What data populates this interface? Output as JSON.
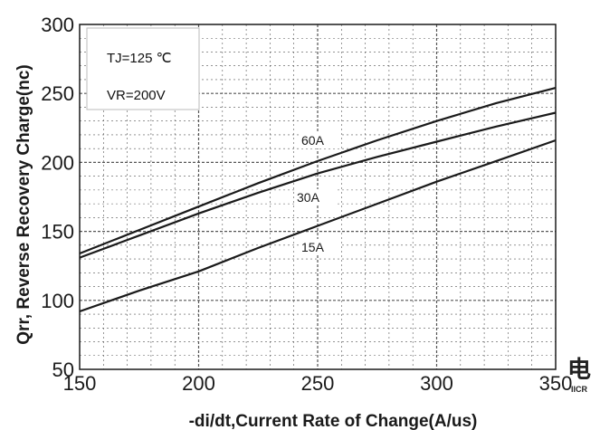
{
  "chart_data": {
    "type": "line",
    "xlabel": "-di/dt,Current Rate of Change(A/us)",
    "ylabel": "Qrr, Reverse Recovery Charge(nc)",
    "xlim": [
      150,
      350
    ],
    "ylim": [
      50,
      300
    ],
    "x_ticks": [
      150,
      200,
      250,
      300,
      350
    ],
    "y_ticks": [
      50,
      100,
      150,
      200,
      250,
      300
    ],
    "grid": true,
    "conditions": [
      "TJ=125 ℃",
      "VR=200V"
    ],
    "x": [
      150,
      175,
      200,
      225,
      250,
      275,
      300,
      325,
      350
    ],
    "series": [
      {
        "name": "60A",
        "values": [
          134,
          151,
          168,
          185,
          201,
          216,
          230,
          243,
          254
        ]
      },
      {
        "name": "30A",
        "values": [
          131,
          147,
          163,
          178,
          192,
          204,
          215,
          226,
          236
        ]
      },
      {
        "name": "15A",
        "values": [
          92,
          107,
          121,
          138,
          154,
          170,
          186,
          201,
          216
        ]
      }
    ],
    "colors": {
      "line": "#1a1a1a",
      "grid": "#555555",
      "background": "#ffffff"
    }
  },
  "logo": {
    "glyph": "电",
    "caption": "IICR"
  }
}
